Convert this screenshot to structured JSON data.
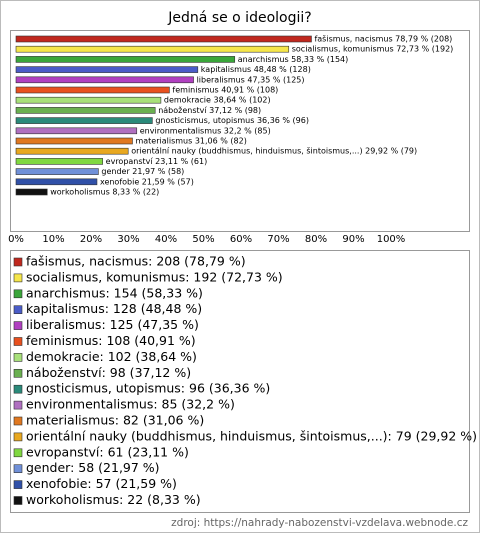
{
  "chart_data": {
    "type": "bar",
    "orientation": "horizontal",
    "title": "Jedná se o ideologii?",
    "values": [
      78.79,
      72.73,
      58.33,
      48.48,
      47.35,
      40.91,
      38.64,
      37.12,
      36.36,
      32.2,
      31.06,
      29.92,
      23.11,
      21.97,
      21.59,
      8.33
    ],
    "value_labels": [
      "fašismus, nacismus 78,79 % (208)",
      "socialismus, komunismus 72,73 % (192)",
      "anarchismus 58,33 % (154)",
      "kapitalismus 48,48 % (128)",
      "liberalismus 47,35 % (125)",
      "feminismus 40,91 % (108)",
      "demokracie 38,64 % (102)",
      "náboženství 37,12 % (98)",
      "gnosticismus, utopismus 36,36 % (96)",
      "environmentalismus 32,2 % (85)",
      "materialismus 31,06 % (82)",
      "orientální nauky (buddhismus, hinduismus, šintoismus,...) 29,92 % (79)",
      "evropanství 23,11 % (61)",
      "gender 21,97 % (58)",
      "xenofobie 21,59 % (57)",
      "workoholismus 8,33 % (22)"
    ],
    "legend_labels": [
      "fašismus, nacismus: 208 (78,79 %)",
      "socialismus, komunismus: 192 (72,73 %)",
      "anarchismus: 154 (58,33 %)",
      "kapitalismus: 128 (48,48 %)",
      "liberalismus: 125 (47,35 %)",
      "feminismus: 108 (40,91 %)",
      "demokracie: 102 (38,64 %)",
      "náboženství: 98 (37,12 %)",
      "gnosticismus, utopismus: 96 (36,36 %)",
      "environmentalismus: 85 (32,2 %)",
      "materialismus: 82 (31,06 %)",
      "orientální nauky (buddhismus, hinduismus, šintoismus,...): 79 (29,92 %)",
      "evropanství: 61 (23,11 %)",
      "gender: 58 (21,97 %)",
      "xenofobie: 57 (21,59 %)",
      "workoholismus: 22 (8,33 %)"
    ],
    "colors": [
      "#c0281e",
      "#f5e64b",
      "#3aa63a",
      "#4a5cc8",
      "#b040c0",
      "#e8501e",
      "#a8e07a",
      "#6ab050",
      "#2a8a7a",
      "#b070c0",
      "#e07820",
      "#e8a820",
      "#80d840",
      "#7090d8",
      "#3050a8",
      "#111111"
    ],
    "xlim": [
      0,
      120
    ],
    "xticks": [
      {
        "value": 0,
        "label": "0%"
      },
      {
        "value": 10,
        "label": "10%"
      },
      {
        "value": 20,
        "label": "20%"
      },
      {
        "value": 30,
        "label": "30%"
      },
      {
        "value": 40,
        "label": "40%"
      },
      {
        "value": 50,
        "label": "50%"
      },
      {
        "value": 60,
        "label": "60%"
      },
      {
        "value": 70,
        "label": "70%"
      },
      {
        "value": 80,
        "label": "80%"
      },
      {
        "value": 90,
        "label": "90%"
      },
      {
        "value": 100,
        "label": "100%"
      }
    ],
    "grid": false,
    "source": "zdroj: https://nahrady-nabozenstvi-vzdelava.webnode.cz"
  }
}
